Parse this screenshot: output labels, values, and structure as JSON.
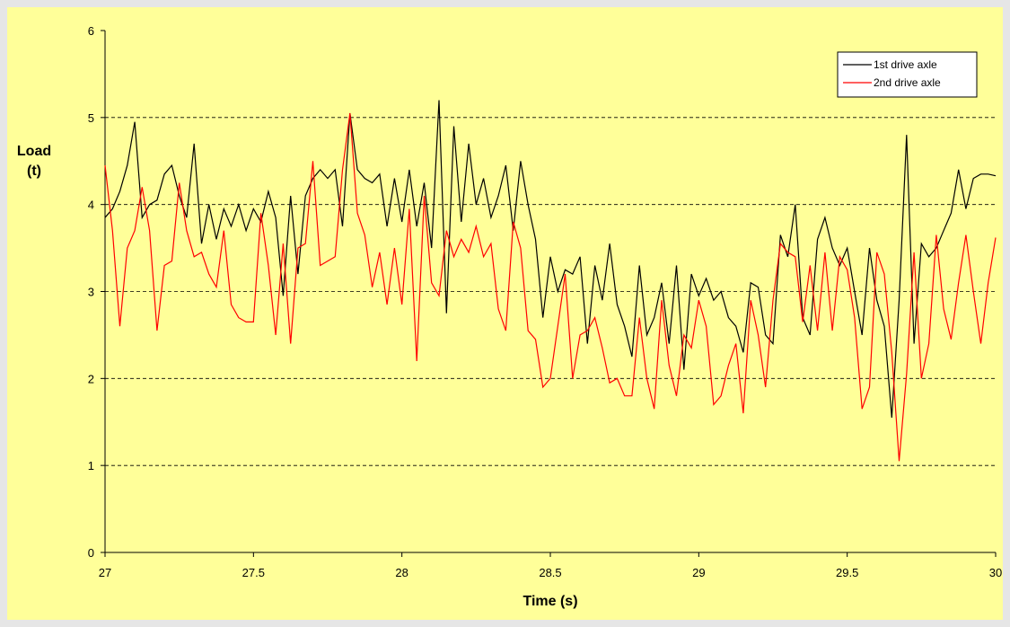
{
  "chart_data": {
    "type": "line",
    "x_label": "Time (s)",
    "y_label": "Load (t)",
    "xlim": [
      27,
      30
    ],
    "xticks": [
      27,
      27.5,
      28,
      28.5,
      29,
      29.5,
      30
    ],
    "ylim": [
      0,
      6
    ],
    "yticks": [
      0,
      1,
      2,
      3,
      4,
      5,
      6
    ],
    "grid": true,
    "legend": "upper right",
    "x": [
      27,
      27.025,
      27.05,
      27.075,
      27.1,
      27.125,
      27.15,
      27.175,
      27.2,
      27.225,
      27.25,
      27.275,
      27.3,
      27.325,
      27.35,
      27.375,
      27.4,
      27.425,
      27.45,
      27.475,
      27.5,
      27.525,
      27.55,
      27.575,
      27.6,
      27.625,
      27.65,
      27.675,
      27.7,
      27.725,
      27.75,
      27.775,
      27.8,
      27.825,
      27.85,
      27.875,
      27.9,
      27.925,
      27.95,
      27.975,
      28,
      28.025,
      28.05,
      28.075,
      28.1,
      28.125,
      28.15,
      28.175,
      28.2,
      28.225,
      28.25,
      28.275,
      28.3,
      28.325,
      28.35,
      28.375,
      28.4,
      28.425,
      28.45,
      28.475,
      28.5,
      28.525,
      28.55,
      28.575,
      28.6,
      28.625,
      28.65,
      28.675,
      28.7,
      28.725,
      28.75,
      28.775,
      28.8,
      28.825,
      28.85,
      28.875,
      28.9,
      28.925,
      28.95,
      28.975,
      29,
      29.025,
      29.05,
      29.075,
      29.1,
      29.125,
      29.15,
      29.175,
      29.2,
      29.225,
      29.25,
      29.275,
      29.3,
      29.325,
      29.35,
      29.375,
      29.4,
      29.425,
      29.45,
      29.475,
      29.5,
      29.525,
      29.55,
      29.575,
      29.6,
      29.625,
      29.65,
      29.675,
      29.7,
      29.725,
      29.75,
      29.775,
      29.8,
      29.825,
      29.85,
      29.875,
      29.9,
      29.925,
      29.95,
      29.975,
      30
    ],
    "series": [
      {
        "name": "1st drive axle",
        "color": "#000000",
        "values": [
          3.85,
          3.95,
          4.15,
          4.45,
          4.95,
          3.85,
          4.0,
          4.05,
          4.35,
          4.45,
          4.1,
          3.85,
          4.7,
          3.55,
          4.0,
          3.6,
          3.95,
          3.75,
          4.0,
          3.7,
          3.95,
          3.8,
          4.15,
          3.85,
          2.95,
          4.1,
          3.2,
          4.1,
          4.3,
          4.4,
          4.3,
          4.4,
          3.75,
          5.05,
          4.4,
          4.3,
          4.25,
          4.35,
          3.75,
          4.3,
          3.8,
          4.4,
          3.75,
          4.25,
          3.5,
          5.2,
          2.75,
          4.9,
          3.8,
          4.7,
          4.0,
          4.3,
          3.85,
          4.1,
          4.45,
          3.7,
          4.5,
          4.0,
          3.6,
          2.7,
          3.4,
          3.0,
          3.25,
          3.2,
          3.4,
          2.4,
          3.3,
          2.9,
          3.55,
          2.85,
          2.6,
          2.25,
          3.3,
          2.5,
          2.7,
          3.1,
          2.4,
          3.3,
          2.1,
          3.2,
          2.95,
          3.15,
          2.9,
          3.0,
          2.7,
          2.6,
          2.3,
          3.1,
          3.05,
          2.5,
          2.4,
          3.65,
          3.4,
          4.0,
          2.7,
          2.5,
          3.6,
          3.85,
          3.5,
          3.3,
          3.5,
          3.0,
          2.5,
          3.5,
          2.9,
          2.6,
          1.55,
          2.9,
          4.8,
          2.4,
          3.55,
          3.4,
          3.5,
          3.7,
          3.9,
          4.4,
          3.95,
          4.3,
          4.35,
          4.35,
          4.33
        ]
      },
      {
        "name": "2nd drive axle",
        "color": "#ff0000",
        "values": [
          4.45,
          3.7,
          2.6,
          3.5,
          3.7,
          4.2,
          3.7,
          2.55,
          3.3,
          3.35,
          4.25,
          3.7,
          3.4,
          3.45,
          3.2,
          3.05,
          3.7,
          2.85,
          2.7,
          2.65,
          2.65,
          3.9,
          3.3,
          2.5,
          3.55,
          2.4,
          3.5,
          3.55,
          4.5,
          3.3,
          3.35,
          3.4,
          4.4,
          5.05,
          3.9,
          3.65,
          3.05,
          3.45,
          2.85,
          3.5,
          2.85,
          3.95,
          2.2,
          4.1,
          3.1,
          2.95,
          3.7,
          3.4,
          3.6,
          3.45,
          3.75,
          3.4,
          3.55,
          2.8,
          2.55,
          3.8,
          3.5,
          2.55,
          2.45,
          1.9,
          2.0,
          2.6,
          3.2,
          2.0,
          2.5,
          2.55,
          2.7,
          2.35,
          1.95,
          2.0,
          1.8,
          1.8,
          2.7,
          2.0,
          1.65,
          2.9,
          2.15,
          1.8,
          2.5,
          2.35,
          2.9,
          2.6,
          1.7,
          1.8,
          2.15,
          2.4,
          1.6,
          2.9,
          2.5,
          1.9,
          2.9,
          3.55,
          3.45,
          3.4,
          2.65,
          3.3,
          2.55,
          3.45,
          2.55,
          3.4,
          3.25,
          2.7,
          1.65,
          1.9,
          3.45,
          3.2,
          2.3,
          1.05,
          2.05,
          3.45,
          2.0,
          2.4,
          3.65,
          2.8,
          2.45,
          3.1,
          3.65,
          3.0,
          2.4,
          3.1,
          3.62
        ]
      }
    ]
  }
}
